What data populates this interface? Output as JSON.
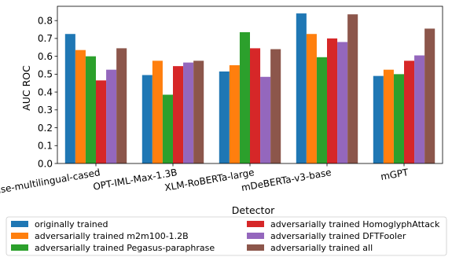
{
  "chart_data": {
    "type": "bar",
    "title": "",
    "xlabel": "Detector",
    "ylabel": "AUC ROC",
    "ylim": [
      0,
      0.88
    ],
    "yticks": [
      "0.0",
      "0.1",
      "0.2",
      "0.3",
      "0.4",
      "0.5",
      "0.6",
      "0.7",
      "0.8"
    ],
    "categories": [
      "BERT-base-multilingual-cased",
      "OPT-IML-Max-1.3B",
      "XLM-RoBERTa-large",
      "mDeBERTa-v3-base",
      "mGPT"
    ],
    "series": [
      {
        "name": "originally trained",
        "color": "#1f77b4",
        "values": [
          0.725,
          0.495,
          0.515,
          0.84,
          0.49
        ]
      },
      {
        "name": "adversarially trained m2m100-1.2B",
        "color": "#ff7f0e",
        "values": [
          0.635,
          0.575,
          0.55,
          0.725,
          0.525
        ]
      },
      {
        "name": "adversarially trained Pegasus-paraphrase",
        "color": "#2ca02c",
        "values": [
          0.6,
          0.385,
          0.735,
          0.595,
          0.5
        ]
      },
      {
        "name": "adversarially trained HomoglyphAttack",
        "color": "#d62728",
        "values": [
          0.465,
          0.545,
          0.645,
          0.7,
          0.575
        ]
      },
      {
        "name": "adversarially trained DFTFooler",
        "color": "#9467bd",
        "values": [
          0.525,
          0.565,
          0.485,
          0.68,
          0.605
        ]
      },
      {
        "name": "adversarially trained all",
        "color": "#8c564b",
        "values": [
          0.645,
          0.575,
          0.64,
          0.835,
          0.755
        ]
      }
    ],
    "grid": false,
    "legend_position": "bottom"
  }
}
